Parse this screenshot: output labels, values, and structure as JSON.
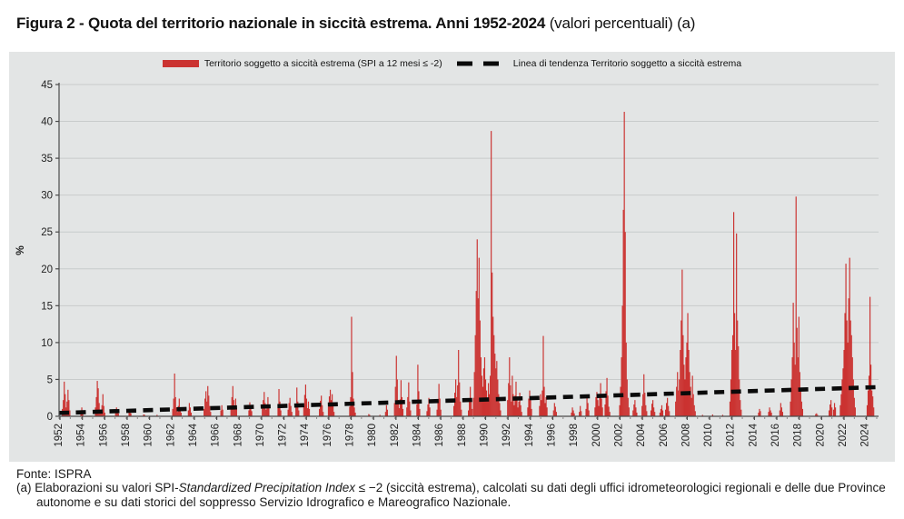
{
  "title": {
    "main": "Figura 2 - Quota del territorio nazionale in siccità estrema. Anni 1952-2024",
    "suffix": " (valori percentuali) (a)"
  },
  "legend": {
    "series_label": "Territorio soggetto a siccità estrema (SPI a 12 mesi ≤ -2)",
    "trend_label": "Linea di tendenza Territorio soggetto a siccità estrema"
  },
  "footer": {
    "source": "Fonte: ISPRA",
    "note_prefix": "(a) Elaborazioni su valori SPI-",
    "note_italic": "Standardized Precipitation Index",
    "note_suffix": " ≤ −2 (siccità estrema), calcolati su dati degli uffici idrometeorologici regionali e delle due Province autonome e su dati storici del soppresso Servizio Idrografico e Mareografico Nazionale."
  },
  "chart_data": {
    "type": "bar",
    "title": "Quota del territorio nazionale in siccità estrema, Anni 1952-2024",
    "unit": "valori percentuali",
    "resolution": "monthly",
    "ylabel": "%",
    "ylim": [
      0,
      45
    ],
    "yticks": [
      0,
      5,
      10,
      15,
      20,
      25,
      30,
      35,
      40,
      45
    ],
    "x_range": [
      1952,
      2025
    ],
    "xtick_labels": [
      "1952",
      "1954",
      "1956",
      "1958",
      "1960",
      "1962",
      "1964",
      "1966",
      "1968",
      "1970",
      "1972",
      "1974",
      "1976",
      "1978",
      "1980",
      "1982",
      "1984",
      "1986",
      "1988",
      "1990",
      "1992",
      "1994",
      "1996",
      "1998",
      "2000",
      "2002",
      "2004",
      "2006",
      "2008",
      "2010",
      "2012",
      "2014",
      "2016",
      "2018",
      "2020",
      "2022",
      "2024"
    ],
    "grid": "horizontal",
    "legend_position": "top-center",
    "colors": {
      "bars": "#cb3331",
      "trend": "#0a0a0a",
      "panel_bg": "#e3e5e5",
      "grid": "#c8cbcb",
      "axis": "#4a4a4a"
    },
    "notable_peaks": [
      {
        "year": 2002,
        "value": 41.3
      },
      {
        "year": 1990,
        "value": 38.7
      },
      {
        "year": 2018,
        "value": 29.8
      },
      {
        "year": 2012,
        "value": 27.7
      },
      {
        "year": 1989,
        "value": 24.0
      },
      {
        "year": 2022,
        "value": 21.5
      },
      {
        "year": 2008,
        "value": 19.9
      },
      {
        "year": 2024,
        "value": 16.2
      },
      {
        "year": 1978,
        "value": 13.5
      },
      {
        "year": 1995,
        "value": 10.9
      }
    ],
    "trend": {
      "x": [
        1952,
        2025
      ],
      "y": [
        0.45,
        3.95
      ]
    },
    "episodes": [
      {
        "start": 1952.25,
        "values": [
          1.0,
          2.2,
          4.7,
          3.0,
          1.2,
          2.0,
          3.6,
          2.2,
          0.8
        ]
      },
      {
        "start": 1953.9,
        "values": [
          0.6,
          1.2,
          0.8
        ]
      },
      {
        "start": 1955.2,
        "values": [
          1.2,
          2.6,
          4.8,
          3.8,
          1.8,
          0.9,
          0.7,
          1.5,
          3.0,
          1.4,
          0.5
        ]
      },
      {
        "start": 1957.0,
        "values": [
          0.9,
          1.2,
          0.6,
          0.4
        ]
      },
      {
        "start": 1958.2,
        "values": [
          0.5,
          0.8,
          0.4
        ]
      },
      {
        "start": 1959.5,
        "values": [
          0.25,
          0.2
        ]
      },
      {
        "start": 1960.7,
        "values": [
          0.2
        ]
      },
      {
        "start": 1962.1,
        "values": [
          1.0,
          2.4,
          5.8,
          2.6,
          1.2,
          0.6,
          1.4,
          2.4,
          1.2,
          0.5
        ]
      },
      {
        "start": 1963.5,
        "values": [
          0.8,
          1.8,
          1.2,
          0.5
        ]
      },
      {
        "start": 1964.9,
        "values": [
          1.0,
          2.4,
          3.4,
          2.0,
          4.1,
          2.8,
          1.4,
          0.6
        ]
      },
      {
        "start": 1966.4,
        "values": [
          0.8,
          1.5,
          0.9
        ]
      },
      {
        "start": 1967.3,
        "values": [
          1.2,
          2.6,
          4.1,
          2.2,
          1.0,
          2.4,
          1.1
        ]
      },
      {
        "start": 1968.9,
        "values": [
          0.8,
          1.9,
          1.5,
          0.7
        ]
      },
      {
        "start": 1970.1,
        "values": [
          1.1,
          2.2,
          3.3,
          1.8,
          0.9,
          1.6,
          2.6,
          1.5
        ]
      },
      {
        "start": 1971.5,
        "values": [
          1.3,
          3.7,
          2.0,
          0.8
        ]
      },
      {
        "start": 1972.4,
        "values": [
          0.9,
          1.8,
          2.5,
          1.4,
          0.6
        ]
      },
      {
        "start": 1973.1,
        "values": [
          1.5,
          3.9,
          2.0,
          0.8
        ]
      },
      {
        "start": 1973.8,
        "values": [
          1.4,
          2.9,
          4.3,
          2.4,
          1.1,
          2.0,
          1.0
        ]
      },
      {
        "start": 1975.2,
        "values": [
          1.0,
          2.1,
          2.8,
          1.5,
          0.6
        ]
      },
      {
        "start": 1976.0,
        "values": [
          1.3,
          2.7,
          3.6,
          2.2,
          3.0,
          1.6,
          0.6
        ]
      },
      {
        "start": 1977.9,
        "values": [
          1.3,
          2.6,
          13.5,
          6.0,
          2.4,
          1.2,
          0.5
        ]
      },
      {
        "start": 1979.6,
        "values": [
          0.3,
          0.2
        ]
      },
      {
        "start": 1980.6,
        "values": [
          0.2
        ]
      },
      {
        "start": 1981.1,
        "values": [
          0.6,
          1.5,
          0.9
        ]
      },
      {
        "start": 1981.9,
        "values": [
          1.8,
          4.0,
          8.2,
          5.0,
          2.2,
          1.1,
          2.3,
          4.9,
          2.6,
          1.0
        ]
      },
      {
        "start": 1983.0,
        "values": [
          1.2,
          2.6,
          4.6,
          2.0,
          0.8
        ]
      },
      {
        "start": 1983.9,
        "values": [
          1.6,
          7.0,
          3.4,
          1.0
        ]
      },
      {
        "start": 1984.8,
        "values": [
          0.7,
          1.6,
          2.5,
          1.2
        ]
      },
      {
        "start": 1985.7,
        "values": [
          0.9,
          2.2,
          4.4,
          2.4,
          0.9
        ]
      },
      {
        "start": 1987.2,
        "values": [
          1.4,
          3.2,
          5.0,
          2.6,
          4.2,
          9.0,
          4.6,
          2.0,
          0.9
        ]
      },
      {
        "start": 1988.5,
        "values": [
          0.8,
          2.0,
          4.0,
          2.2,
          1.0
        ]
      },
      {
        "start": 1988.95,
        "values": [
          2.5,
          6,
          11,
          17,
          24,
          16,
          21.5,
          13,
          8,
          5.5,
          4,
          6.5,
          8,
          5,
          3.5,
          2.5,
          4.5,
          3,
          5.5,
          38.7,
          19.5,
          13.5,
          11,
          8.5,
          6.5,
          7.5,
          5,
          3,
          1.8,
          0.8
        ]
      },
      {
        "start": 1992.0,
        "values": [
          2.2,
          4.5,
          8.0,
          4.2,
          2.0,
          5.5,
          3.0,
          1.5,
          2.8,
          4.7,
          2.4,
          1.2,
          2.0,
          3.2,
          1.5,
          0.6
        ]
      },
      {
        "start": 1993.8,
        "values": [
          1.2,
          2.4,
          3.5,
          2.2,
          1.0
        ]
      },
      {
        "start": 1994.85,
        "values": [
          1.4,
          3.0,
          2.2,
          3.5,
          10.9,
          4.0,
          1.8,
          2.6,
          1.2
        ]
      },
      {
        "start": 1996.1,
        "values": [
          0.8,
          1.8,
          1.3,
          0.6
        ]
      },
      {
        "start": 1997.7,
        "values": [
          0.5,
          1.2,
          0.8,
          0.4
        ]
      },
      {
        "start": 1998.4,
        "values": [
          0.6,
          1.4,
          0.7
        ]
      },
      {
        "start": 1999.0,
        "values": [
          1.0,
          2.5,
          1.8,
          0.8
        ]
      },
      {
        "start": 1999.8,
        "values": [
          1.2,
          2.6,
          3.3,
          2.2,
          1.4,
          2.8,
          4.5,
          2.4,
          1.2
        ]
      },
      {
        "start": 2000.7,
        "values": [
          1.6,
          3.4,
          5.2,
          2.8,
          1.3,
          0.6
        ]
      },
      {
        "start": 2002.0,
        "values": [
          1.5,
          4,
          8,
          15,
          28,
          41.3,
          25,
          10,
          5,
          2.5,
          1.2
        ]
      },
      {
        "start": 2003.2,
        "values": [
          0.8,
          1.6,
          2.2,
          1.2,
          0.5
        ]
      },
      {
        "start": 2004.0,
        "values": [
          1.4,
          3.0,
          5.7,
          3.2,
          1.5,
          0.7
        ]
      },
      {
        "start": 2004.8,
        "values": [
          0.8,
          1.7,
          2.2,
          1.2,
          0.6
        ]
      },
      {
        "start": 2005.6,
        "values": [
          0.5,
          1.0,
          1.5,
          0.8
        ]
      },
      {
        "start": 2006.1,
        "values": [
          0.9,
          1.8,
          2.5,
          1.4,
          0.7
        ]
      },
      {
        "start": 2007.0,
        "values": [
          2,
          4,
          6,
          3.5,
          5,
          9,
          13,
          19.9,
          11,
          7,
          5,
          8,
          10,
          14,
          9,
          6,
          4,
          2.5,
          5.5,
          3,
          1.5,
          0.7
        ]
      },
      {
        "start": 2009.4,
        "values": [
          0.2
        ]
      },
      {
        "start": 2010.3,
        "values": [
          0.25
        ]
      },
      {
        "start": 2011.2,
        "values": [
          0.2
        ]
      },
      {
        "start": 2011.85,
        "values": [
          2,
          5,
          9,
          11,
          27.7,
          14,
          9,
          24.8,
          13,
          9.5,
          5,
          2.2,
          0.9
        ]
      },
      {
        "start": 2014.4,
        "values": [
          0.5,
          1.0,
          0.7
        ]
      },
      {
        "start": 2015.3,
        "values": [
          0.6,
          1.2,
          0.8,
          0.5
        ]
      },
      {
        "start": 2016.3,
        "values": [
          0.8,
          1.8,
          1.2,
          0.6
        ]
      },
      {
        "start": 2017.25,
        "values": [
          2,
          5,
          8,
          15.4,
          10,
          7,
          29.8,
          12,
          8,
          13.5,
          6,
          3.5,
          2,
          1
        ]
      },
      {
        "start": 2019.5,
        "values": [
          0.3,
          0.4,
          0.2
        ]
      },
      {
        "start": 2020.7,
        "values": [
          0.8,
          1.6,
          2.2,
          1.2
        ]
      },
      {
        "start": 2021.1,
        "values": [
          0.9,
          1.8,
          1.2
        ]
      },
      {
        "start": 2021.7,
        "values": [
          1.5,
          3,
          5,
          6.5,
          9,
          14,
          20.7,
          13,
          10,
          16,
          21.5,
          13,
          11,
          8,
          5,
          2.5,
          1.2
        ]
      },
      {
        "start": 2024.1,
        "values": [
          1.5,
          3.5,
          5.5,
          16.2,
          7,
          3.5,
          2.7,
          1.2
        ]
      }
    ]
  }
}
